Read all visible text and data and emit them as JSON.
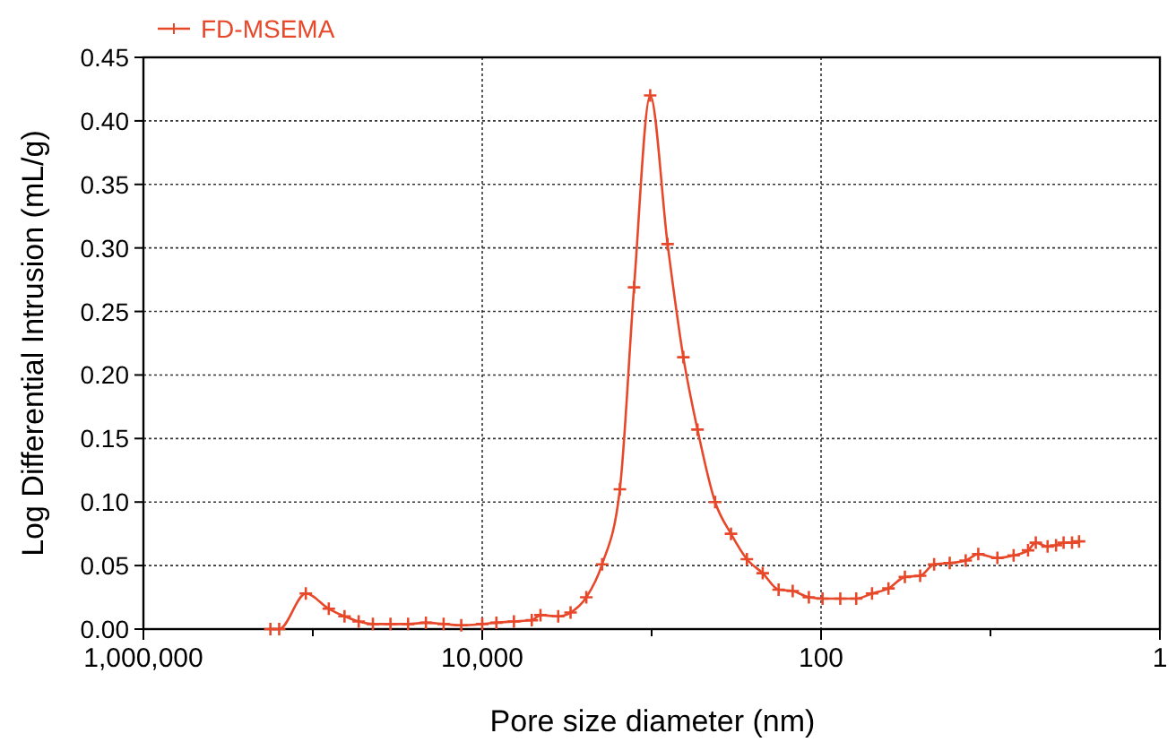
{
  "chart_data": {
    "type": "line",
    "xlabel": "Pore size diameter (nm)",
    "ylabel": "Log Differential Intrusion (mL/g)",
    "log": "x",
    "xlim": [
      1000000,
      1
    ],
    "ylim": [
      0,
      0.45
    ],
    "xticks": [
      {
        "value": 1000000,
        "label": "1,000,000"
      },
      {
        "value": 100000,
        "label": null
      },
      {
        "value": 10000,
        "label": "10,000"
      },
      {
        "value": 1000,
        "label": null
      },
      {
        "value": 100,
        "label": "100"
      },
      {
        "value": 10,
        "label": null
      },
      {
        "value": 1,
        "label": "1"
      }
    ],
    "yticks": [
      {
        "value": 0,
        "label": "0.00"
      },
      {
        "value": 0.05,
        "label": "0.05"
      },
      {
        "value": 0.1,
        "label": "0.10"
      },
      {
        "value": 0.15,
        "label": "0.15"
      },
      {
        "value": 0.2,
        "label": "0.20"
      },
      {
        "value": 0.25,
        "label": "0.25"
      },
      {
        "value": 0.3,
        "label": "0.30"
      },
      {
        "value": 0.35,
        "label": "0.35"
      },
      {
        "value": 0.4,
        "label": "0.40"
      },
      {
        "value": 0.45,
        "label": "0.45"
      }
    ],
    "grid": true,
    "legend": "top left",
    "marker": "cross",
    "line_style": "solid",
    "series": [
      {
        "name": "FD-MSEMA",
        "color": "#e8482a",
        "x": [
          178000,
          158000,
          110000,
          80500,
          65000,
          53600,
          44200,
          34800,
          27400,
          21500,
          16900,
          13300,
          10000,
          8250,
          6500,
          5100,
          4530,
          3560,
          3010,
          2430,
          1960,
          1540,
          1270,
          1020,
          805,
          650,
          536,
          422,
          340,
          274,
          221,
          178,
          147,
          118,
          98,
          77,
          62,
          50,
          40,
          32,
          26,
          21.5,
          17.4,
          14,
          11.8,
          9.1,
          7.3,
          6,
          5.4,
          4.6,
          4.1,
          3.7,
          3.3,
          3
        ],
        "values": [
          0,
          0,
          0.028,
          0.016,
          0.01,
          0.006,
          0.004,
          0.004,
          0.004,
          0.005,
          0.004,
          0.003,
          0.004,
          0.005,
          0.006,
          0.007,
          0.011,
          0.01,
          0.013,
          0.025,
          0.051,
          0.11,
          0.269,
          0.42,
          0.303,
          0.214,
          0.157,
          0.1,
          0.075,
          0.055,
          0.044,
          0.031,
          0.03,
          0.025,
          0.024,
          0.024,
          0.024,
          0.028,
          0.032,
          0.041,
          0.042,
          0.051,
          0.052,
          0.054,
          0.059,
          0.056,
          0.058,
          0.062,
          0.068,
          0.065,
          0.066,
          0.068,
          0.068,
          0.069
        ]
      }
    ]
  }
}
